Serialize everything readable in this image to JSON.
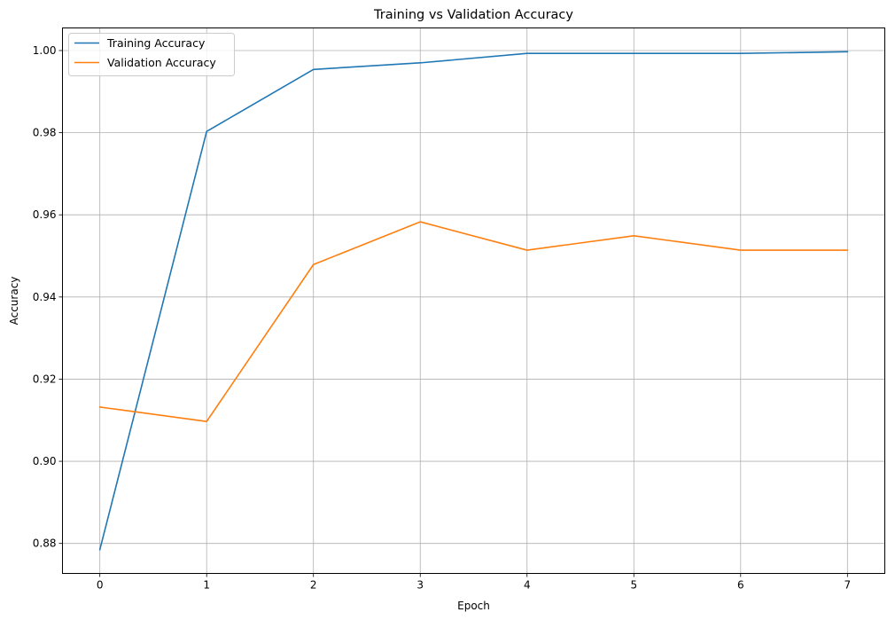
{
  "chart_data": {
    "type": "line",
    "title": "Training vs Validation Accuracy",
    "xlabel": "Epoch",
    "ylabel": "Accuracy",
    "x": [
      0,
      1,
      2,
      3,
      4,
      5,
      6,
      7
    ],
    "xticks": [
      "0",
      "1",
      "2",
      "3",
      "4",
      "5",
      "6",
      "7"
    ],
    "yticks": [
      "0.88",
      "0.90",
      "0.92",
      "0.94",
      "0.96",
      "0.98",
      "1.00"
    ],
    "xlim": [
      -0.35,
      7.35
    ],
    "ylim": [
      0.8727,
      1.0055
    ],
    "grid": true,
    "legend_position": "upper-left",
    "series": [
      {
        "name": "Training Accuracy",
        "color": "#1f77b4",
        "values": [
          0.8785,
          0.9803,
          0.9954,
          0.997,
          0.9993,
          0.9993,
          0.9993,
          0.9997
        ]
      },
      {
        "name": "Validation Accuracy",
        "color": "#ff7f0e",
        "values": [
          0.9132,
          0.9097,
          0.9479,
          0.9583,
          0.9514,
          0.9549,
          0.9514,
          0.9514
        ]
      }
    ]
  }
}
